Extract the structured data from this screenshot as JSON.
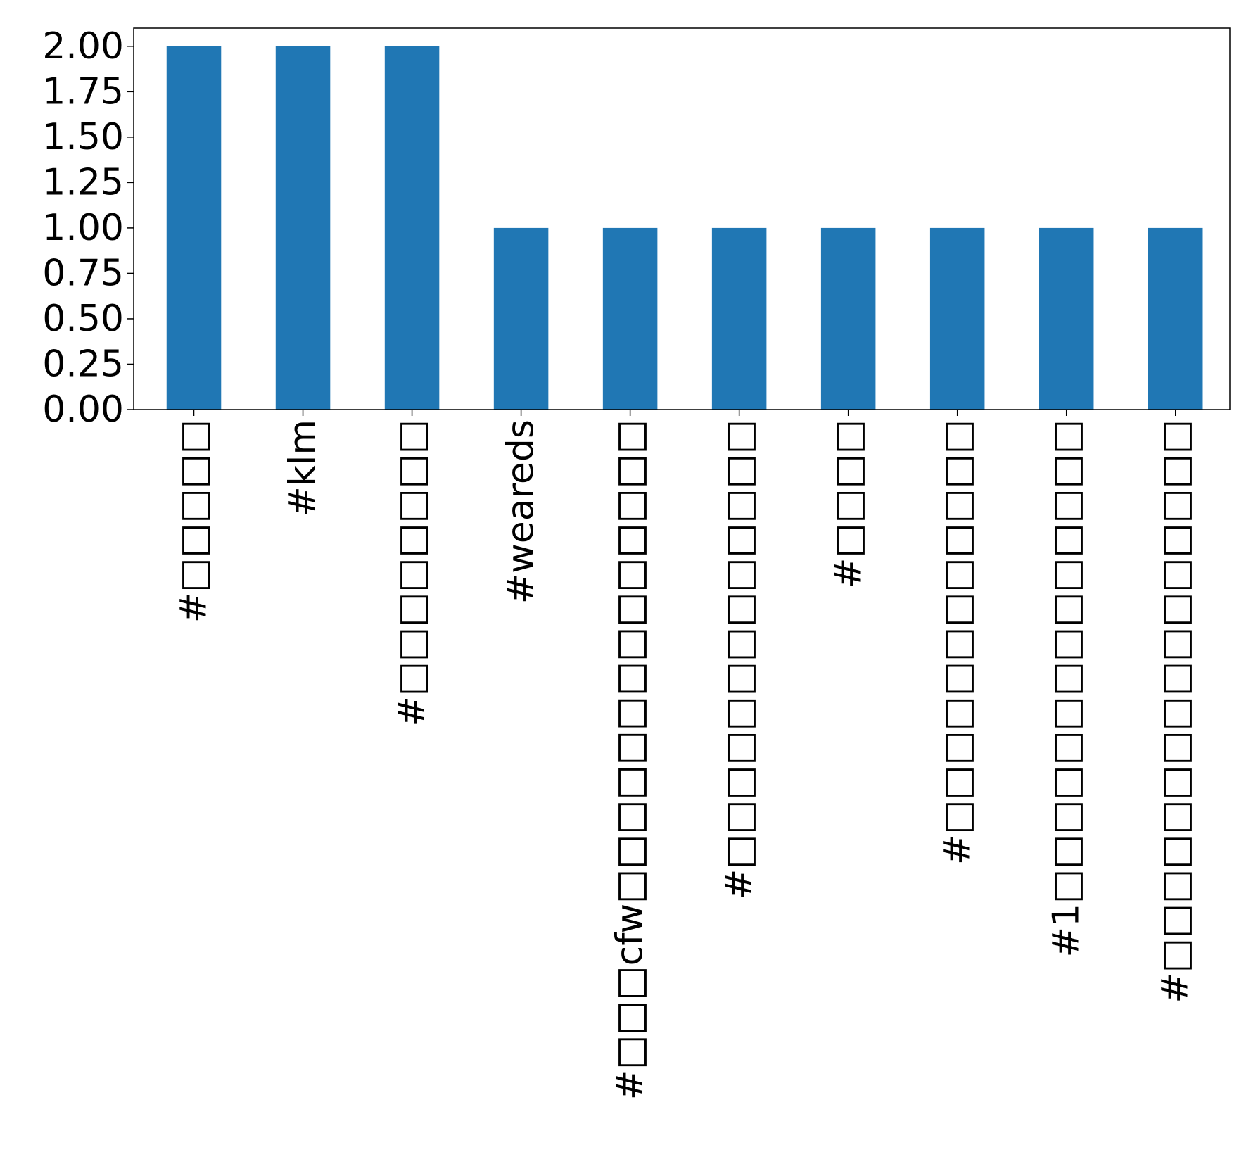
{
  "chart_data": {
    "type": "bar",
    "categories": [
      "#□□□□□",
      "#klm",
      "#□□□□□□□□",
      "#weareds",
      "#□□□cfw□□□□□□□□□□□□□□",
      "#□□□□□□□□□□□□□",
      "#□□□□",
      "#□□□□□□□□□□□□",
      "#1□□□□□□□□□□□□□□",
      "#□□□□□□□□□□□□□□□□"
    ],
    "values": [
      2,
      2,
      2,
      1,
      1,
      1,
      1,
      1,
      1,
      1
    ],
    "ylim": [
      0,
      2.1
    ],
    "yticks": [
      "0.00",
      "0.25",
      "0.50",
      "0.75",
      "1.00",
      "1.25",
      "1.50",
      "1.75",
      "2.00"
    ],
    "title": "",
    "xlabel": "",
    "ylabel": "",
    "bar_color": "#2077b4",
    "grid": false,
    "legend": "none"
  }
}
